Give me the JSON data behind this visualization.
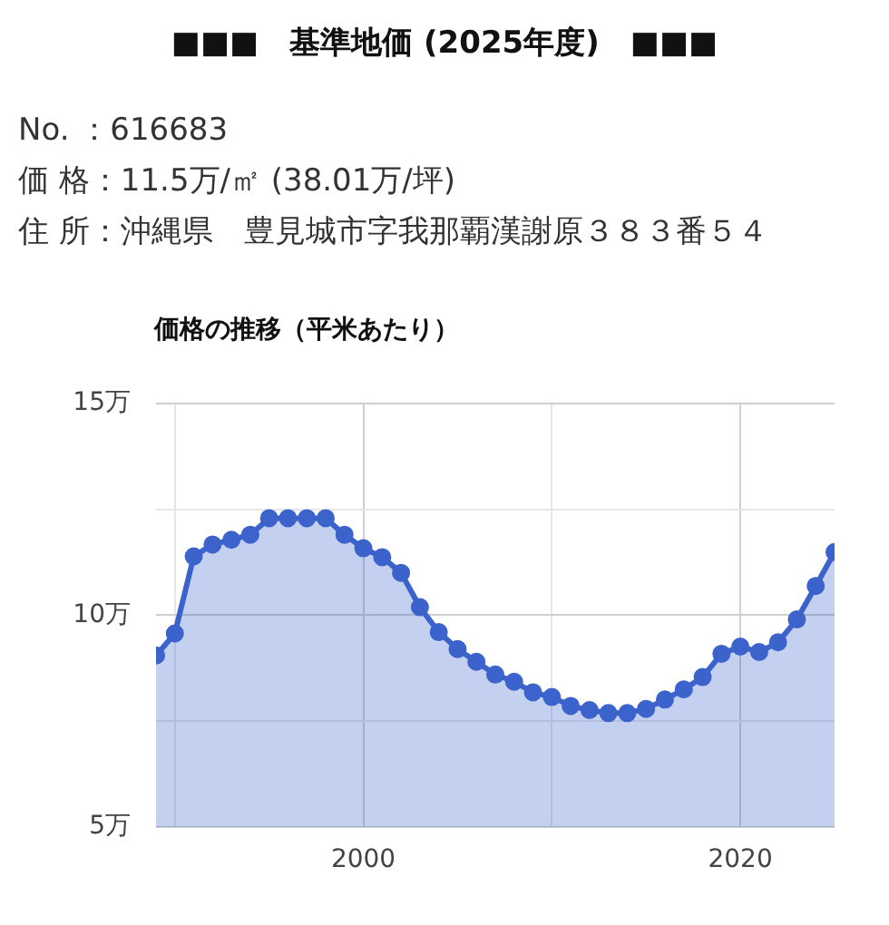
{
  "chart_data": {
    "type": "area",
    "title": "■■■　基準地価 (2025年度)　■■■",
    "subtitle": "価格の推移（平米あたり）",
    "annotations": [
      "No. ：616683",
      "価 格：11.5万/㎡ (38.01万/坪)",
      "住 所：沖縄県　豊見城市字我那覇漢謝原３８３番５４"
    ],
    "x": [
      1989,
      1990,
      1991,
      1992,
      1993,
      1994,
      1995,
      1996,
      1997,
      1998,
      1999,
      2000,
      2001,
      2002,
      2003,
      2004,
      2005,
      2006,
      2007,
      2008,
      2009,
      2010,
      2011,
      2012,
      2013,
      2014,
      2015,
      2016,
      2017,
      2018,
      2019,
      2020,
      2021,
      2022,
      2023,
      2024,
      2025
    ],
    "series": [
      {
        "color": "#3c63cc",
        "values": [
          9.05,
          9.57,
          11.39,
          11.67,
          11.78,
          11.9,
          12.29,
          12.29,
          12.29,
          12.29,
          11.9,
          11.58,
          11.37,
          11.0,
          10.19,
          9.6,
          9.2,
          8.9,
          8.6,
          8.43,
          8.18,
          8.07,
          7.86,
          7.76,
          7.69,
          7.69,
          7.79,
          8.01,
          8.25,
          8.54,
          9.09,
          9.26,
          9.13,
          9.36,
          9.9,
          10.69,
          11.49
        ]
      }
    ],
    "xlim": [
      1989,
      2025
    ],
    "xticks": [
      {
        "value": 1990,
        "label": null
      },
      2000,
      {
        "value": 2010,
        "label": null
      },
      2020
    ],
    "ylim": [
      5,
      15
    ],
    "yticks": [
      {
        "value": 5,
        "label": "5万"
      },
      {
        "value": 7.5,
        "label": null
      },
      {
        "value": 10,
        "label": "10万"
      },
      {
        "value": 12.5,
        "label": null
      },
      {
        "value": 15,
        "label": "15万"
      }
    ],
    "grid": true,
    "legend": false,
    "marker": "circle",
    "line_style": "solid"
  }
}
